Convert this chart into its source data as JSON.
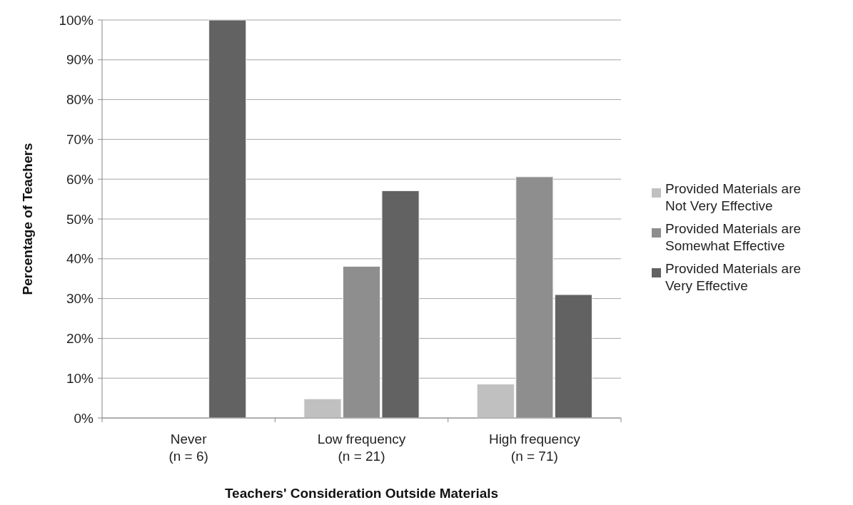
{
  "chart_data": {
    "type": "bar",
    "xlabel": "Teachers' Consideration Outside Materials",
    "ylabel": "Percentage of Teachers",
    "categories": [
      "Never\n(n = 6)",
      "Low frequency\n(n = 21)",
      "High frequency\n(n = 71)"
    ],
    "series": [
      {
        "name": "Provided Materials are Not Very Effective",
        "color": "#c0c0c0",
        "values": [
          0,
          4.8,
          8.5
        ]
      },
      {
        "name": "Provided Materials are Somewhat Effective",
        "color": "#8e8e8e",
        "values": [
          0,
          38.1,
          60.6
        ]
      },
      {
        "name": "Provided Materials are Very Effective",
        "color": "#626262",
        "values": [
          100,
          57.1,
          31.0
        ]
      }
    ],
    "ylim": [
      0,
      100
    ],
    "yticks": [
      {
        "value": 0,
        "label": "0%"
      },
      {
        "value": 10,
        "label": "10%"
      },
      {
        "value": 20,
        "label": "20%"
      },
      {
        "value": 30,
        "label": "30%"
      },
      {
        "value": 40,
        "label": "40%"
      },
      {
        "value": 50,
        "label": "50%"
      },
      {
        "value": 60,
        "label": "60%"
      },
      {
        "value": 70,
        "label": "70%"
      },
      {
        "value": 80,
        "label": "80%"
      },
      {
        "value": 90,
        "label": "90%"
      },
      {
        "value": 100,
        "label": "100%"
      }
    ],
    "grid": "y",
    "legend": "right"
  }
}
